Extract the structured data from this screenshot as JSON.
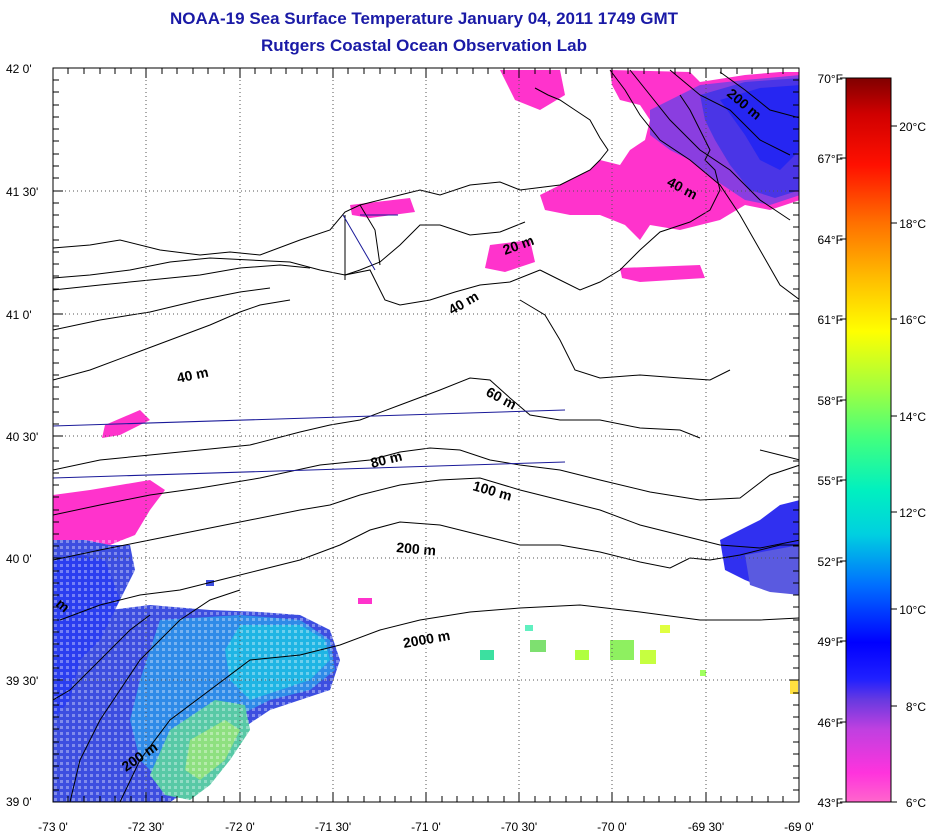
{
  "title": {
    "line1": "NOAA-19 Sea Surface Temperature January 04, 2011 1749 GMT",
    "line2": "Rutgers Coastal Ocean Observation Lab"
  },
  "map": {
    "lat_ticks": [
      "42 0'",
      "41 30'",
      "41 0'",
      "40 30'",
      "40 0'",
      "39 30'",
      "39 0'"
    ],
    "lon_ticks": [
      "-73 0'",
      "-72 30'",
      "-72 0'",
      "-71 30'",
      "-71 0'",
      "-70 30'",
      "-70 0'",
      "-69 30'",
      "-69 0'"
    ],
    "contour_labels": [
      "200 m",
      "40 m",
      "20 m",
      "40 m",
      "40 m",
      "60 m",
      "80 m",
      "100 m",
      "200 m",
      "2000 m",
      "200 m",
      "m"
    ]
  },
  "colorbar": {
    "fahrenheit": [
      "70°F",
      "67°F",
      "64°F",
      "61°F",
      "58°F",
      "55°F",
      "52°F",
      "49°F",
      "46°F",
      "43°F"
    ],
    "celsius": [
      "20°C",
      "18°C",
      "16°C",
      "14°C",
      "12°C",
      "10°C",
      "8°C",
      "6°C"
    ]
  }
}
